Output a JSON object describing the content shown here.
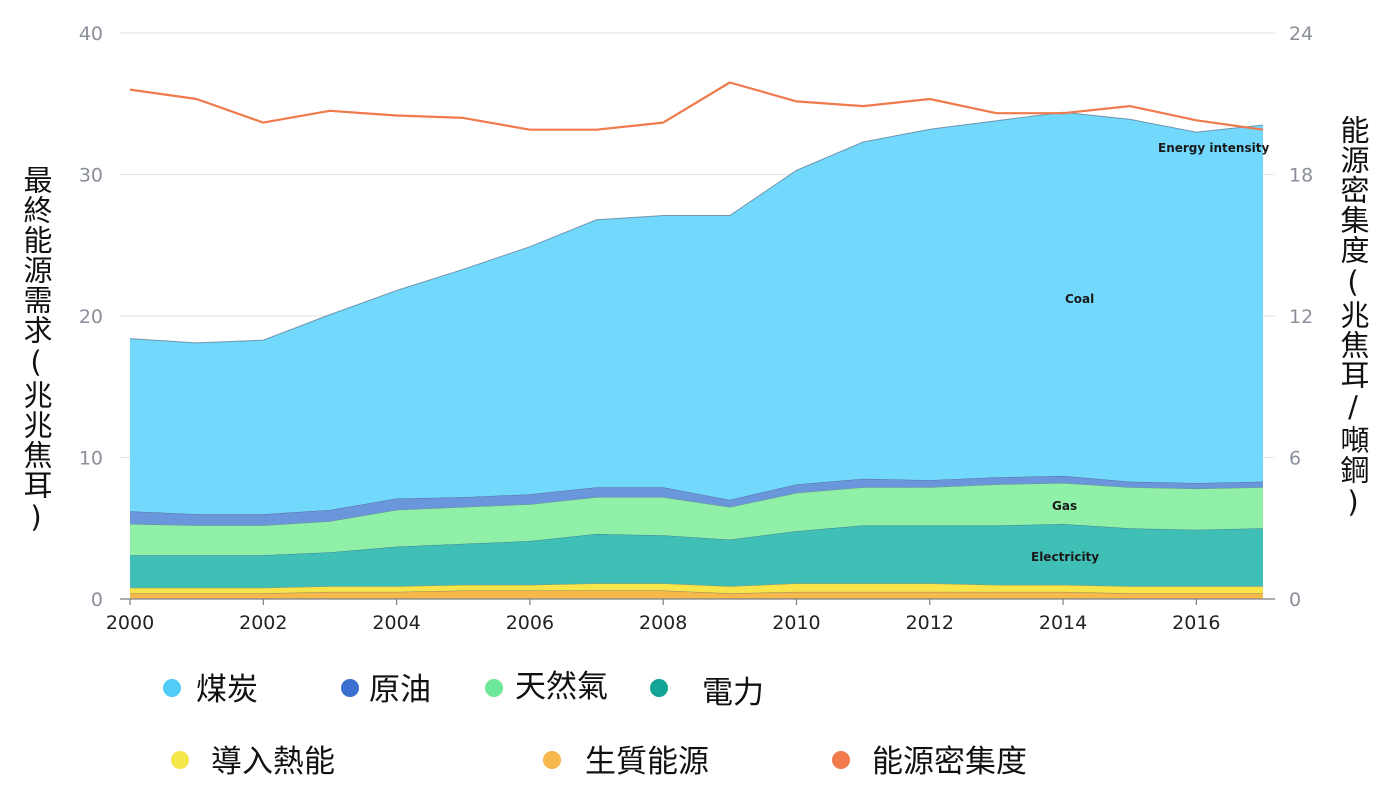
{
  "chart_data": {
    "type": "area",
    "stacked": true,
    "x": [
      2000,
      2001,
      2002,
      2003,
      2004,
      2005,
      2006,
      2007,
      2008,
      2009,
      2010,
      2011,
      2012,
      2013,
      2014,
      2015,
      2016,
      2017
    ],
    "series": [
      {
        "name": "生質能源",
        "color": "#f6b94c",
        "axis": "left",
        "values": [
          0.4,
          0.4,
          0.4,
          0.5,
          0.5,
          0.6,
          0.6,
          0.6,
          0.6,
          0.4,
          0.5,
          0.5,
          0.5,
          0.5,
          0.5,
          0.4,
          0.4,
          0.4
        ]
      },
      {
        "name": "導入熱能",
        "color": "#f8e54a",
        "axis": "left",
        "values": [
          0.4,
          0.4,
          0.4,
          0.4,
          0.4,
          0.4,
          0.4,
          0.5,
          0.5,
          0.5,
          0.6,
          0.6,
          0.6,
          0.5,
          0.5,
          0.5,
          0.5,
          0.5
        ]
      },
      {
        "name": "電力",
        "color": "#3fbfb5",
        "axis": "left",
        "values": [
          2.3,
          2.3,
          2.3,
          2.4,
          2.8,
          2.9,
          3.1,
          3.5,
          3.4,
          3.3,
          3.7,
          4.1,
          4.1,
          4.2,
          4.3,
          4.1,
          4.0,
          4.1
        ]
      },
      {
        "name": "天然氣",
        "color": "#90f0a8",
        "axis": "left",
        "values": [
          2.2,
          2.1,
          2.1,
          2.2,
          2.6,
          2.6,
          2.6,
          2.6,
          2.7,
          2.3,
          2.7,
          2.7,
          2.7,
          2.9,
          2.9,
          2.9,
          2.9,
          2.9
        ]
      },
      {
        "name": "原油",
        "color": "#6a96dc",
        "axis": "left",
        "values": [
          0.9,
          0.8,
          0.8,
          0.8,
          0.8,
          0.7,
          0.7,
          0.7,
          0.7,
          0.5,
          0.6,
          0.6,
          0.5,
          0.5,
          0.5,
          0.4,
          0.4,
          0.4
        ]
      },
      {
        "name": "煤炭",
        "color": "#72d9fd",
        "axis": "left",
        "values": [
          12.2,
          12.1,
          12.3,
          13.8,
          14.7,
          16.1,
          17.5,
          18.9,
          19.2,
          20.1,
          22.2,
          23.8,
          24.8,
          25.2,
          25.7,
          25.6,
          24.8,
          25.2
        ]
      }
    ],
    "line": {
      "name": "能源密集度",
      "color": "#f07a4c",
      "axis": "right",
      "values": [
        21.6,
        21.2,
        20.2,
        20.7,
        20.5,
        20.4,
        19.9,
        19.9,
        20.2,
        21.9,
        21.1,
        20.9,
        21.2,
        20.6,
        20.6,
        20.9,
        20.3,
        19.9
      ]
    },
    "left_axis": {
      "label": "最終能源需求(兆兆焦耳)",
      "min": 0,
      "max": 40,
      "ticks": [
        "0",
        "10",
        "20",
        "30",
        "40"
      ]
    },
    "right_axis": {
      "label": "能源密集度(兆焦耳/噸鋼)",
      "min": 0,
      "max": 24,
      "ticks": [
        "0",
        "6",
        "12",
        "18",
        "24"
      ]
    },
    "x_axis": {
      "min": 2000,
      "max": 2017,
      "ticks": [
        "2000",
        "2002",
        "2004",
        "2006",
        "2008",
        "2010",
        "2012",
        "2014",
        "2016"
      ]
    },
    "annotations": [
      "Energy intensity",
      "Coal",
      "Gas",
      "Electricity"
    ],
    "grid": true,
    "legend_position": "bottom",
    "legend": [
      {
        "label": "煤炭",
        "color": "#4fcdf7"
      },
      {
        "label": "原油",
        "color": "#3a6fcf"
      },
      {
        "label": "天然氣",
        "color": "#6ee89a"
      },
      {
        "label": "電力",
        "color": "#12a596"
      },
      {
        "label": "導入熱能",
        "color": "#f7e64a"
      },
      {
        "label": "生質能源",
        "color": "#f6b84a"
      },
      {
        "label": "能源密集度",
        "color": "#f07a4c"
      }
    ]
  }
}
